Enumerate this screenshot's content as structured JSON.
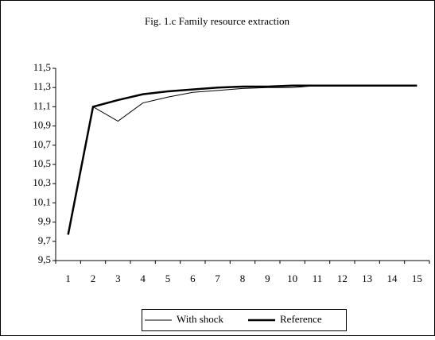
{
  "chart_data": {
    "type": "line",
    "title": "Fig. 1.c Family resource extraction",
    "categories": [
      "1",
      "2",
      "3",
      "4",
      "5",
      "6",
      "7",
      "8",
      "9",
      "10",
      "11",
      "12",
      "13",
      "14",
      "15"
    ],
    "series": [
      {
        "name": "With shock",
        "color": "#000000",
        "width": 1,
        "values": [
          9.77,
          11.1,
          10.95,
          11.14,
          11.2,
          11.25,
          11.27,
          11.29,
          11.3,
          11.3,
          11.32,
          11.32,
          11.32,
          11.32,
          11.32
        ]
      },
      {
        "name": "Reference",
        "color": "#000000",
        "width": 2.5,
        "values": [
          9.77,
          11.1,
          11.17,
          11.23,
          11.26,
          11.28,
          11.3,
          11.31,
          11.31,
          11.32,
          11.32,
          11.32,
          11.32,
          11.32,
          11.32
        ]
      }
    ],
    "ylim": [
      9.5,
      11.5
    ],
    "yticks": [
      {
        "value": 9.5,
        "label": "9,5"
      },
      {
        "value": 9.7,
        "label": "9,7"
      },
      {
        "value": 9.9,
        "label": "9,9"
      },
      {
        "value": 10.1,
        "label": "10,1"
      },
      {
        "value": 10.3,
        "label": "10,3"
      },
      {
        "value": 10.5,
        "label": "10,5"
      },
      {
        "value": 10.7,
        "label": "10,7"
      },
      {
        "value": 10.9,
        "label": "10,9"
      },
      {
        "value": 11.1,
        "label": "11,1"
      },
      {
        "value": 11.3,
        "label": "11,3"
      },
      {
        "value": 11.5,
        "label": "11,5"
      }
    ],
    "grid": false,
    "legend": "bottom"
  }
}
